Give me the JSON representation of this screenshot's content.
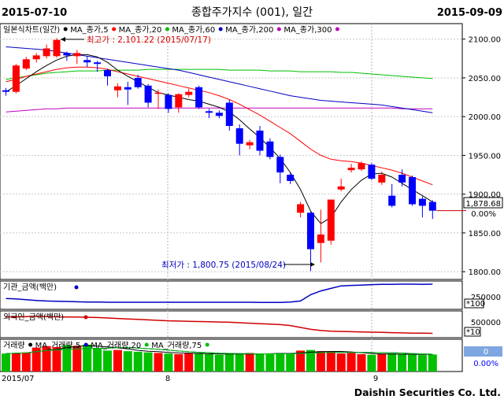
{
  "header": {
    "start_date": "2015-07-10",
    "title": "종합주가지수 (001), 일간",
    "end_date": "2015-09-09"
  },
  "footer": {
    "brand": "Daishin Securities Co. Ltd.",
    "x_labels": [
      "2015/07",
      "8",
      "9"
    ]
  },
  "chart_data": [
    {
      "type": "candlestick",
      "legend": [
        {
          "label": "일본식차트(일간)",
          "color": "#000000"
        },
        {
          "label": "MA_종가,5",
          "color": "#000000"
        },
        {
          "label": "MA_종가,20",
          "color": "#ff0000"
        },
        {
          "label": "MA_종가,60",
          "color": "#00c000"
        },
        {
          "label": "MA_종가,200",
          "color": "#0000c0"
        },
        {
          "label": "MA_종가,300",
          "color": "#c000c0"
        }
      ],
      "colors": {
        "up": "#ff0000",
        "down": "#0000ff",
        "ma5": "#000000",
        "ma20": "#ff0000",
        "ma60": "#00c000",
        "ma200": "#0000c0",
        "ma300": "#c000c0"
      },
      "ylim": [
        1790,
        2120
      ],
      "y_ticks": [
        1800,
        1850,
        1900,
        1950,
        2000,
        2050,
        2100
      ],
      "y_tick_labels": [
        "1800.00",
        "1850.00",
        "1900.00",
        "1950.00",
        "2000.00",
        "2050.00",
        "2100.00"
      ],
      "candles": [
        {
          "o": 2034,
          "h": 2037,
          "l": 2027,
          "c": 2032
        },
        {
          "o": 2032,
          "h": 2068,
          "l": 2030,
          "c": 2066
        },
        {
          "o": 2062,
          "h": 2077,
          "l": 2060,
          "c": 2074
        },
        {
          "o": 2074,
          "h": 2082,
          "l": 2070,
          "c": 2079
        },
        {
          "o": 2078,
          "h": 2093,
          "l": 2075,
          "c": 2088
        },
        {
          "o": 2078,
          "h": 2101.22,
          "l": 2076,
          "c": 2099
        },
        {
          "o": 2082,
          "h": 2084,
          "l": 2072,
          "c": 2079
        },
        {
          "o": 2078,
          "h": 2086,
          "l": 2068,
          "c": 2082
        },
        {
          "o": 2073,
          "h": 2078,
          "l": 2064,
          "c": 2070
        },
        {
          "o": 2070,
          "h": 2072,
          "l": 2058,
          "c": 2068
        },
        {
          "o": 2060,
          "h": 2062,
          "l": 2040,
          "c": 2052
        },
        {
          "o": 2034,
          "h": 2043,
          "l": 2025,
          "c": 2039
        },
        {
          "o": 2038,
          "h": 2045,
          "l": 2015,
          "c": 2035
        },
        {
          "o": 2050,
          "h": 2054,
          "l": 2036,
          "c": 2038
        },
        {
          "o": 2040,
          "h": 2042,
          "l": 2012,
          "c": 2018
        },
        {
          "o": 2030,
          "h": 2035,
          "l": 2010,
          "c": 2031
        },
        {
          "o": 2028,
          "h": 2030,
          "l": 2005,
          "c": 2010
        },
        {
          "o": 2012,
          "h": 2030,
          "l": 2005,
          "c": 2029
        },
        {
          "o": 2028,
          "h": 2036,
          "l": 2025,
          "c": 2032
        },
        {
          "o": 2038,
          "h": 2040,
          "l": 2010,
          "c": 2012
        },
        {
          "o": 2007,
          "h": 2010,
          "l": 1998,
          "c": 2005
        },
        {
          "o": 2005,
          "h": 2008,
          "l": 1998,
          "c": 2001
        },
        {
          "o": 2018,
          "h": 2022,
          "l": 1982,
          "c": 1988
        },
        {
          "o": 1985,
          "h": 1990,
          "l": 1950,
          "c": 1965
        },
        {
          "o": 1963,
          "h": 1970,
          "l": 1958,
          "c": 1967
        },
        {
          "o": 1982,
          "h": 1988,
          "l": 1950,
          "c": 1956
        },
        {
          "o": 1968,
          "h": 1972,
          "l": 1945,
          "c": 1948
        },
        {
          "o": 1948,
          "h": 1951,
          "l": 1914,
          "c": 1928
        },
        {
          "o": 1925,
          "h": 1928,
          "l": 1913,
          "c": 1917
        },
        {
          "o": 1876,
          "h": 1890,
          "l": 1870,
          "c": 1887
        },
        {
          "o": 1876,
          "h": 1877,
          "l": 1800.75,
          "c": 1829
        },
        {
          "o": 1837,
          "h": 1880,
          "l": 1812,
          "c": 1848
        },
        {
          "o": 1840,
          "h": 1893,
          "l": 1835,
          "c": 1893
        },
        {
          "o": 1906,
          "h": 1920,
          "l": 1904,
          "c": 1910
        },
        {
          "o": 1931,
          "h": 1939,
          "l": 1928,
          "c": 1934
        },
        {
          "o": 1932,
          "h": 1942,
          "l": 1930,
          "c": 1940
        },
        {
          "o": 1938,
          "h": 1940,
          "l": 1918,
          "c": 1920
        },
        {
          "o": 1915,
          "h": 1929,
          "l": 1912,
          "c": 1925
        },
        {
          "o": 1898,
          "h": 1913,
          "l": 1883,
          "c": 1885
        },
        {
          "o": 1925,
          "h": 1932,
          "l": 1910,
          "c": 1915
        },
        {
          "o": 1922,
          "h": 1924,
          "l": 1885,
          "c": 1887
        },
        {
          "o": 1894,
          "h": 1897,
          "l": 1870,
          "c": 1885
        },
        {
          "o": 1890,
          "h": 1892,
          "l": 1868,
          "c": 1878.68
        }
      ],
      "ma5": [
        2032,
        2040,
        2049,
        2058,
        2066,
        2073,
        2078,
        2080,
        2080,
        2077,
        2070,
        2060,
        2052,
        2045,
        2038,
        2031,
        2028,
        2025,
        2022,
        2020,
        2016,
        2012,
        2006,
        1996,
        1984,
        1973,
        1960,
        1946,
        1928,
        1906,
        1878,
        1862,
        1870,
        1890,
        1906,
        1918,
        1926,
        1927,
        1922,
        1914,
        1906,
        1898,
        1890
      ],
      "ma20": [
        2045,
        2048,
        2052,
        2055,
        2058,
        2061,
        2063,
        2064,
        2064,
        2063,
        2061,
        2058,
        2055,
        2052,
        2049,
        2046,
        2043,
        2040,
        2037,
        2034,
        2031,
        2027,
        2022,
        2016,
        2009,
        2002,
        1994,
        1986,
        1978,
        1968,
        1958,
        1950,
        1945,
        1943,
        1942,
        1940,
        1937,
        1934,
        1931,
        1927,
        1922,
        1917,
        1912
      ],
      "ma60": [
        2048,
        2050,
        2052,
        2054,
        2056,
        2057,
        2058,
        2059,
        2059,
        2059,
        2060,
        2060,
        2060,
        2060,
        2061,
        2061,
        2061,
        2061,
        2061,
        2061,
        2061,
        2061,
        2060,
        2060,
        2060,
        2060,
        2059,
        2059,
        2059,
        2058,
        2058,
        2058,
        2058,
        2057,
        2057,
        2056,
        2055,
        2054,
        2053,
        2052,
        2051,
        2050,
        2049
      ],
      "ma200": [
        2090,
        2089,
        2088,
        2087,
        2086,
        2084,
        2082,
        2080,
        2078,
        2076,
        2074,
        2072,
        2070,
        2068,
        2066,
        2064,
        2062,
        2060,
        2057,
        2054,
        2051,
        2048,
        2045,
        2042,
        2039,
        2036,
        2033,
        2030,
        2027,
        2025,
        2023,
        2021,
        2020,
        2019,
        2018,
        2017,
        2016,
        2015,
        2013,
        2011,
        2009,
        2007,
        2005
      ],
      "ma300": [
        2006,
        2007,
        2008,
        2009,
        2010,
        2010,
        2011,
        2011,
        2011,
        2011,
        2011,
        2011,
        2011,
        2011,
        2011,
        2011,
        2011,
        2011,
        2011,
        2011,
        2011,
        2011,
        2011,
        2011,
        2011,
        2011,
        2011,
        2011,
        2011,
        2011,
        2011,
        2011,
        2011,
        2011,
        2011,
        2011,
        2011,
        2011,
        2011,
        2010,
        2010,
        2010,
        2010
      ],
      "annotations": {
        "high": "최고가 : 2,101.22 (2015/07/17)",
        "low": "최저가 : 1,800.75 (2015/08/24)",
        "last_value": "1,878.68",
        "last_change": "0.00%"
      }
    },
    {
      "type": "line",
      "legend": [
        {
          "label": "기관_금액(백만)",
          "color": "#0000c0"
        }
      ],
      "y_tick_labels": [
        "250000"
      ],
      "scale_label": "*100",
      "values": [
        40,
        38,
        35,
        32,
        30,
        29,
        28,
        27,
        26,
        26,
        25,
        25,
        25,
        25,
        25,
        25,
        25,
        25,
        25,
        25,
        25,
        25,
        25,
        25,
        25,
        24,
        24,
        24,
        26,
        30,
        55,
        70,
        80,
        90,
        92,
        93,
        95,
        96,
        96,
        97,
        97,
        96,
        97
      ]
    },
    {
      "type": "line",
      "legend": [
        {
          "label": "외국인_금액(백만)",
          "color": "#d00000"
        }
      ],
      "y_tick_labels": [
        "500000"
      ],
      "scale_label": "*10",
      "values": [
        85,
        84,
        86,
        87,
        86,
        85,
        84,
        84,
        83,
        82,
        80,
        78,
        76,
        74,
        72,
        70,
        68,
        67,
        66,
        65,
        64,
        63,
        62,
        60,
        58,
        56,
        54,
        52,
        48,
        40,
        32,
        27,
        24,
        23,
        22,
        21,
        20,
        19,
        18,
        17,
        16,
        16,
        15
      ]
    },
    {
      "type": "bar",
      "legend": [
        {
          "label": "거래량",
          "color": "#000000"
        },
        {
          "label": "MA_거래량,5",
          "color": "#000000"
        },
        {
          "label": "MA_거래량,20",
          "color": "#0000c0"
        },
        {
          "label": "MA_거래량,75",
          "color": "#00c000"
        }
      ],
      "up_color": "#ff0000",
      "down_color": "#00c000",
      "value_label": "0",
      "change_label": "0.00%",
      "volumes": [
        60,
        62,
        64,
        80,
        85,
        82,
        88,
        86,
        90,
        78,
        70,
        72,
        68,
        66,
        64,
        62,
        60,
        58,
        62,
        60,
        58,
        56,
        58,
        60,
        62,
        58,
        60,
        62,
        60,
        70,
        72,
        68,
        66,
        60,
        62,
        58,
        56,
        58,
        60,
        58,
        56,
        55,
        57
      ]
    }
  ]
}
